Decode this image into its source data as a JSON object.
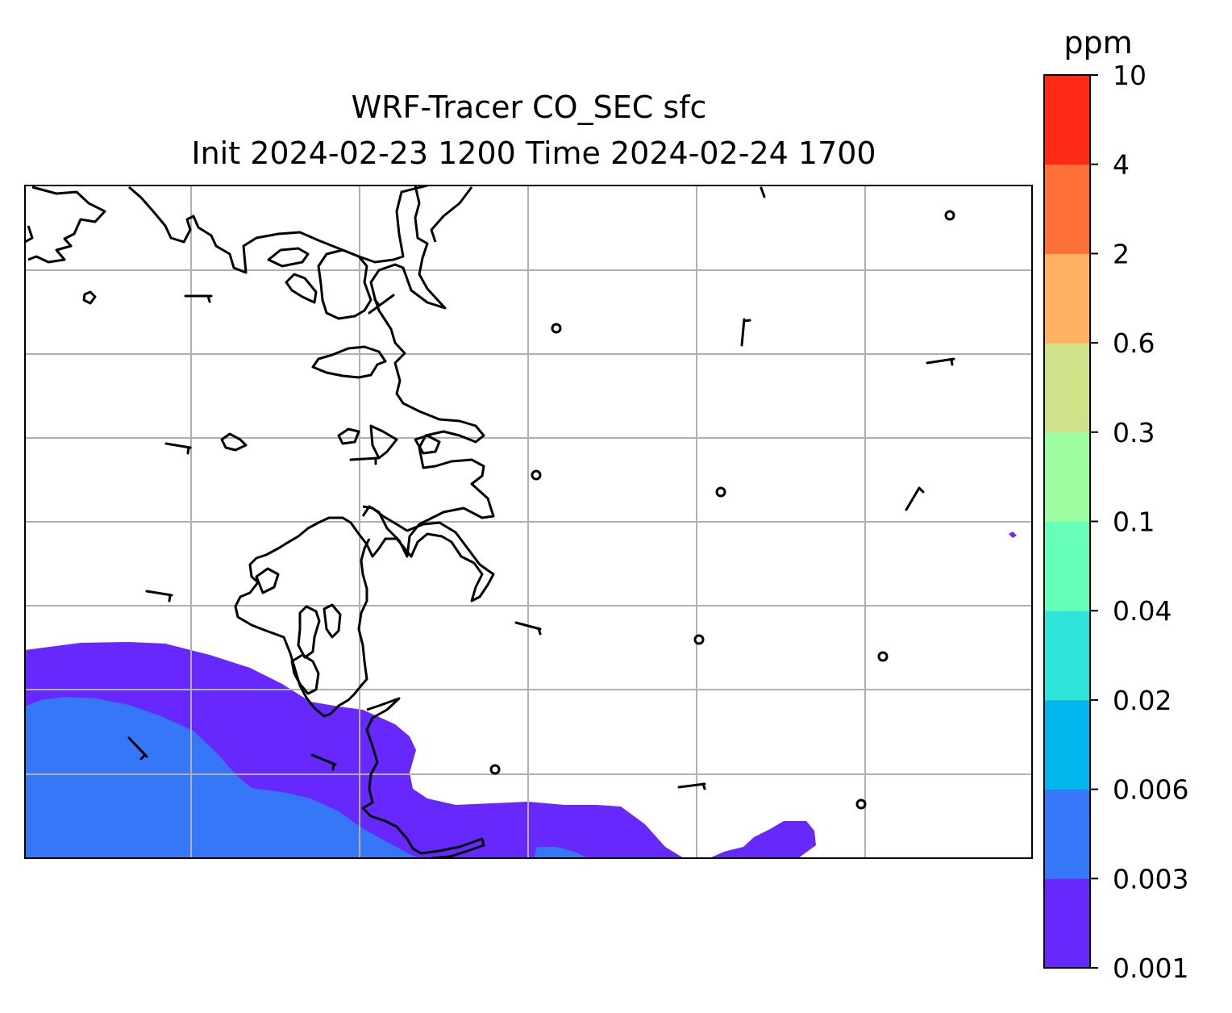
{
  "title": {
    "line1": "WRF-Tracer CO_SEC sfc",
    "line2": "Init 2024-02-23 1200 Time 2024-02-24 1700"
  },
  "colorbar": {
    "unit": "ppm",
    "levels": [
      "0.001",
      "0.003",
      "0.006",
      "0.02",
      "0.04",
      "0.1",
      "0.3",
      "0.6",
      "2",
      "4",
      "10"
    ],
    "colors": [
      "#6628fd",
      "#3577f6",
      "#00b6ec",
      "#2ee3d8",
      "#66feb9",
      "#9cfea0",
      "#d0e289",
      "#ffb060",
      "#ff7138",
      "#ff2a16"
    ]
  },
  "map": {
    "field": "CO_SEC surface tracer concentration",
    "visible_contour_levels": [
      "0.001",
      "0.003"
    ],
    "gridlines": true,
    "features": [
      "coastline",
      "wind-barbs",
      "calm-wind-circles"
    ]
  }
}
